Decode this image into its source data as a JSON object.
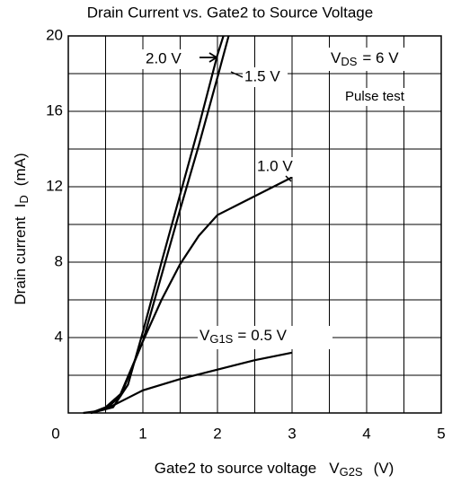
{
  "chart_data": {
    "type": "line",
    "title": "Drain Current vs. Gate2 to Source Voltage",
    "x_label": {
      "text": "Gate2 to source voltage",
      "symbol": "V",
      "sub": "G2S",
      "unit": "(V)"
    },
    "y_label": {
      "text": "Drain current",
      "symbol": "I",
      "sub": "D",
      "unit": "(mA)"
    },
    "xlim": [
      0,
      5
    ],
    "ylim": [
      0,
      20
    ],
    "xticks": [
      0,
      1,
      2,
      3,
      4,
      5
    ],
    "yticks": [
      4,
      8,
      12,
      16,
      20
    ],
    "xgrid": [
      0.5,
      1,
      1.5,
      2,
      2.5,
      3,
      3.5,
      4,
      4.5
    ],
    "ygrid": [
      2,
      4,
      6,
      8,
      10,
      12,
      14,
      16,
      18
    ],
    "grid": true,
    "color": "#000000",
    "series": [
      {
        "name": "2.0 V",
        "x": [
          0.3,
          0.6,
          0.8,
          1.0,
          1.25,
          1.5,
          1.75,
          2.0,
          2.08
        ],
        "values": [
          0,
          0.3,
          1.5,
          4.3,
          8.0,
          11.6,
          15.2,
          19.0,
          20
        ]
      },
      {
        "name": "1.5 V",
        "x": [
          0.3,
          0.5,
          0.7,
          1.0,
          1.25,
          1.5,
          1.75,
          2.0,
          2.15
        ],
        "values": [
          0,
          0.2,
          0.9,
          3.8,
          7.3,
          10.8,
          14.2,
          17.8,
          20
        ]
      },
      {
        "name": "1.0 V",
        "x": [
          0.3,
          0.5,
          0.7,
          1.0,
          1.25,
          1.5,
          1.75,
          2.0,
          2.25,
          2.5,
          2.75,
          3.0
        ],
        "values": [
          0,
          0.3,
          1.0,
          3.8,
          6.0,
          7.9,
          9.4,
          10.5,
          11.0,
          11.5,
          12.0,
          12.5
        ]
      },
      {
        "name": "0.5 V",
        "x": [
          0.2,
          0.4,
          0.6,
          0.8,
          1.0,
          1.5,
          2.0,
          2.5,
          3.0
        ],
        "values": [
          0,
          0.1,
          0.4,
          0.8,
          1.2,
          1.8,
          2.3,
          2.8,
          3.2
        ],
        "label_prefix": {
          "symbol": "V",
          "sub": "G1S",
          "eq": "="
        }
      }
    ],
    "annotations": {
      "vds": {
        "symbol": "V",
        "sub": "DS",
        "text": "= 6 V"
      },
      "pulse": "Pulse test"
    }
  }
}
